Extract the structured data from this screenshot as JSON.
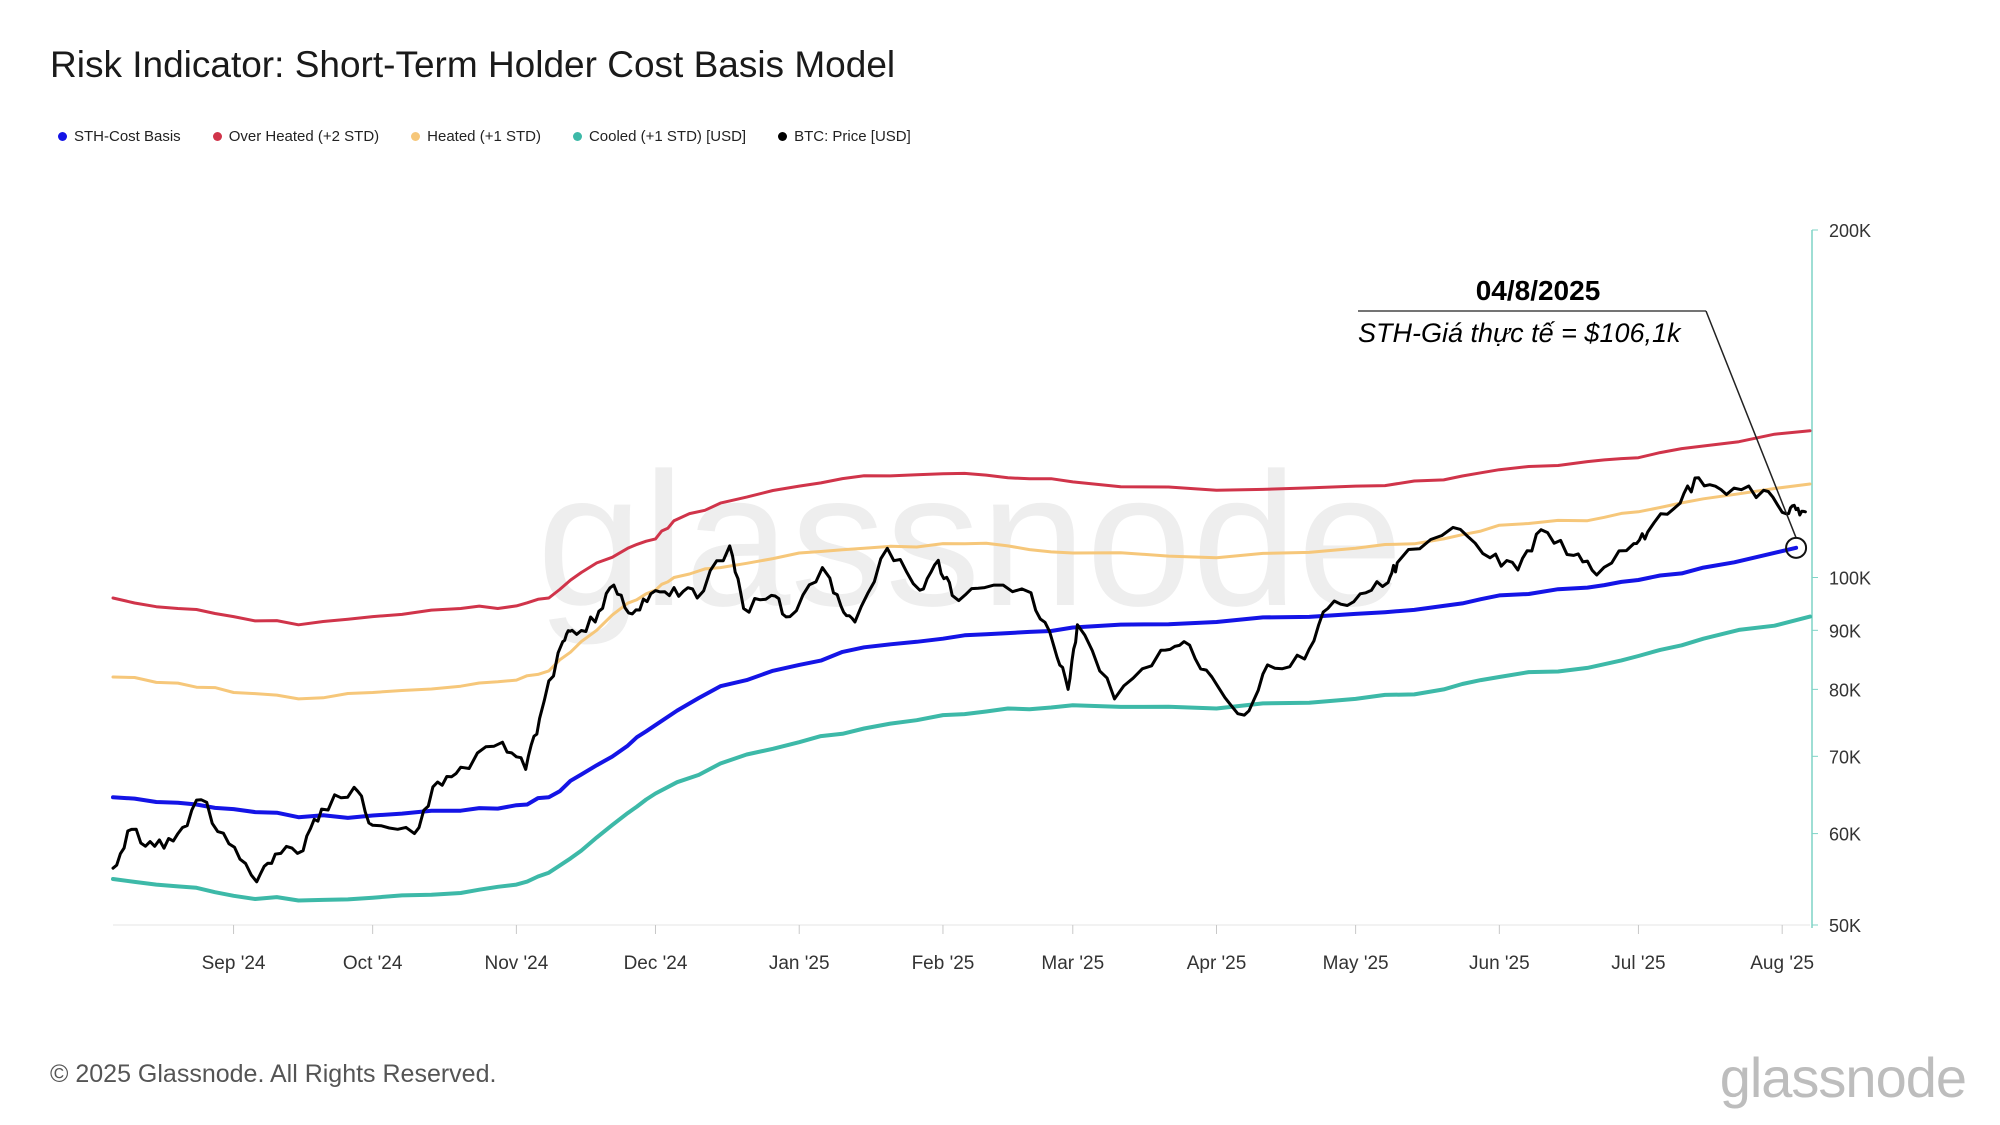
{
  "title": "Risk Indicator: Short-Term Holder Cost Basis Model",
  "legend": [
    {
      "label": "STH-Cost Basis",
      "color": "#1414e6"
    },
    {
      "label": "Over Heated (+2 STD)",
      "color": "#d0344a"
    },
    {
      "label": "Heated (+1 STD)",
      "color": "#f6c77a"
    },
    {
      "label": "Cooled (+1 STD) [USD]",
      "color": "#3db9a8"
    },
    {
      "label": "BTC: Price [USD]",
      "color": "#000000"
    }
  ],
  "annotation": {
    "date": "04/8/2025",
    "text": "STH-Giá thực tế = $106,1k"
  },
  "watermark": "glassnode",
  "footer": {
    "copyright": "© 2025 Glassnode. All Rights Reserved.",
    "logo": "glassnode"
  },
  "chart_data": {
    "type": "line",
    "y_scale": "log",
    "ylim": [
      50000,
      200000
    ],
    "xlim": [
      "2024-08-06",
      "2025-08-07"
    ],
    "x_ticks": [
      {
        "date": "2024-09-01",
        "label": "Sep '24"
      },
      {
        "date": "2024-10-01",
        "label": "Oct '24"
      },
      {
        "date": "2024-11-01",
        "label": "Nov '24"
      },
      {
        "date": "2024-12-01",
        "label": "Dec '24"
      },
      {
        "date": "2025-01-01",
        "label": "Jan '25"
      },
      {
        "date": "2025-02-01",
        "label": "Feb '25"
      },
      {
        "date": "2025-03-01",
        "label": "Mar '25"
      },
      {
        "date": "2025-04-01",
        "label": "Apr '25"
      },
      {
        "date": "2025-05-01",
        "label": "May '25"
      },
      {
        "date": "2025-06-01",
        "label": "Jun '25"
      },
      {
        "date": "2025-07-01",
        "label": "Jul '25"
      },
      {
        "date": "2025-08-01",
        "label": "Aug '25"
      }
    ],
    "y_ticks": [
      {
        "value": 50000,
        "label": "50K"
      },
      {
        "value": 60000,
        "label": "60K"
      },
      {
        "value": 70000,
        "label": "70K"
      },
      {
        "value": 80000,
        "label": "80K"
      },
      {
        "value": 90000,
        "label": "90K"
      },
      {
        "value": 100000,
        "label": "100K"
      },
      {
        "value": 200000,
        "label": "200K"
      }
    ],
    "series": [
      {
        "name": "Over Heated (+2 STD)",
        "color": "#d0344a",
        "width": 3,
        "points": [
          [
            "2024-08-06",
            96000
          ],
          [
            "2024-08-20",
            94000
          ],
          [
            "2024-09-01",
            92500
          ],
          [
            "2024-09-15",
            91000
          ],
          [
            "2024-10-01",
            92500
          ],
          [
            "2024-10-20",
            94000
          ],
          [
            "2024-11-01",
            94500
          ],
          [
            "2024-11-08",
            96000
          ],
          [
            "2024-11-15",
            101000
          ],
          [
            "2024-11-25",
            106000
          ],
          [
            "2024-12-01",
            108000
          ],
          [
            "2024-12-05",
            112000
          ],
          [
            "2024-12-15",
            116000
          ],
          [
            "2025-01-01",
            120000
          ],
          [
            "2025-01-15",
            122500
          ],
          [
            "2025-02-01",
            123000
          ],
          [
            "2025-02-15",
            122000
          ],
          [
            "2025-03-01",
            121000
          ],
          [
            "2025-04-01",
            119000
          ],
          [
            "2025-05-01",
            120000
          ],
          [
            "2025-05-20",
            121500
          ],
          [
            "2025-06-01",
            124000
          ],
          [
            "2025-06-20",
            126000
          ],
          [
            "2025-07-01",
            127000
          ],
          [
            "2025-07-15",
            130000
          ],
          [
            "2025-08-07",
            134000
          ]
        ]
      },
      {
        "name": "Heated (+1 STD)",
        "color": "#f6c77a",
        "width": 3,
        "points": [
          [
            "2024-08-06",
            82000
          ],
          [
            "2024-08-20",
            81000
          ],
          [
            "2024-09-01",
            79500
          ],
          [
            "2024-09-15",
            78500
          ],
          [
            "2024-10-01",
            79500
          ],
          [
            "2024-10-20",
            80500
          ],
          [
            "2024-11-01",
            81500
          ],
          [
            "2024-11-08",
            83000
          ],
          [
            "2024-11-15",
            88000
          ],
          [
            "2024-11-25",
            95000
          ],
          [
            "2024-12-01",
            97500
          ],
          [
            "2024-12-05",
            100000
          ],
          [
            "2024-12-15",
            102000
          ],
          [
            "2025-01-01",
            105000
          ],
          [
            "2025-01-15",
            106000
          ],
          [
            "2025-02-01",
            107000
          ],
          [
            "2025-02-15",
            106500
          ],
          [
            "2025-03-01",
            105000
          ],
          [
            "2025-04-01",
            104000
          ],
          [
            "2025-05-01",
            106000
          ],
          [
            "2025-05-20",
            108000
          ],
          [
            "2025-06-01",
            111000
          ],
          [
            "2025-06-20",
            112000
          ],
          [
            "2025-07-01",
            114000
          ],
          [
            "2025-07-15",
            117000
          ],
          [
            "2025-08-07",
            120500
          ]
        ]
      },
      {
        "name": "STH-Cost Basis",
        "color": "#1414e6",
        "width": 4,
        "points": [
          [
            "2024-08-06",
            64500
          ],
          [
            "2024-08-20",
            63800
          ],
          [
            "2024-09-01",
            63000
          ],
          [
            "2024-09-15",
            62000
          ],
          [
            "2024-10-01",
            62200
          ],
          [
            "2024-10-20",
            62800
          ],
          [
            "2024-11-01",
            63500
          ],
          [
            "2024-11-08",
            64500
          ],
          [
            "2024-11-15",
            67500
          ],
          [
            "2024-11-25",
            71500
          ],
          [
            "2024-12-01",
            74500
          ],
          [
            "2024-12-15",
            80500
          ],
          [
            "2025-01-01",
            84000
          ],
          [
            "2025-01-15",
            87000
          ],
          [
            "2025-02-01",
            88500
          ],
          [
            "2025-02-15",
            89500
          ],
          [
            "2025-03-01",
            90500
          ],
          [
            "2025-04-01",
            91500
          ],
          [
            "2025-05-01",
            93000
          ],
          [
            "2025-05-20",
            94500
          ],
          [
            "2025-06-01",
            96500
          ],
          [
            "2025-06-20",
            98000
          ],
          [
            "2025-07-01",
            99500
          ],
          [
            "2025-07-15",
            102000
          ],
          [
            "2025-08-04",
            106100
          ]
        ]
      },
      {
        "name": "Cooled (+1 STD) [USD]",
        "color": "#3db9a8",
        "width": 4,
        "points": [
          [
            "2024-08-06",
            54800
          ],
          [
            "2024-08-20",
            54000
          ],
          [
            "2024-09-01",
            53000
          ],
          [
            "2024-09-15",
            52500
          ],
          [
            "2024-10-01",
            52800
          ],
          [
            "2024-10-20",
            53300
          ],
          [
            "2024-11-01",
            54200
          ],
          [
            "2024-11-08",
            55500
          ],
          [
            "2024-11-15",
            58000
          ],
          [
            "2024-11-25",
            62500
          ],
          [
            "2024-12-01",
            65000
          ],
          [
            "2024-12-15",
            69000
          ],
          [
            "2025-01-01",
            72000
          ],
          [
            "2025-01-15",
            74000
          ],
          [
            "2025-02-01",
            76000
          ],
          [
            "2025-02-15",
            77000
          ],
          [
            "2025-03-01",
            77500
          ],
          [
            "2025-04-01",
            77000
          ],
          [
            "2025-05-01",
            78500
          ],
          [
            "2025-05-20",
            80000
          ],
          [
            "2025-06-01",
            82000
          ],
          [
            "2025-06-20",
            83500
          ],
          [
            "2025-07-01",
            85500
          ],
          [
            "2025-07-15",
            88500
          ],
          [
            "2025-08-07",
            92500
          ]
        ]
      },
      {
        "name": "BTC: Price [USD]",
        "color": "#000000",
        "width": 3,
        "points": [
          [
            "2024-08-06",
            56000
          ],
          [
            "2024-08-10",
            60500
          ],
          [
            "2024-08-15",
            58500
          ],
          [
            "2024-08-20",
            60000
          ],
          [
            "2024-08-25",
            64200
          ],
          [
            "2024-08-31",
            58800
          ],
          [
            "2024-09-06",
            54500
          ],
          [
            "2024-09-10",
            57600
          ],
          [
            "2024-09-16",
            58000
          ],
          [
            "2024-09-20",
            63000
          ],
          [
            "2024-09-27",
            65800
          ],
          [
            "2024-10-01",
            61000
          ],
          [
            "2024-10-10",
            60000
          ],
          [
            "2024-10-15",
            66500
          ],
          [
            "2024-10-20",
            68500
          ],
          [
            "2024-10-29",
            72000
          ],
          [
            "2024-11-03",
            68200
          ],
          [
            "2024-11-06",
            75500
          ],
          [
            "2024-11-11",
            88000
          ],
          [
            "2024-11-13",
            90000
          ],
          [
            "2024-11-18",
            91500
          ],
          [
            "2024-11-22",
            98500
          ],
          [
            "2024-11-26",
            93000
          ],
          [
            "2024-11-30",
            96800
          ],
          [
            "2024-12-05",
            98000
          ],
          [
            "2024-12-10",
            96000
          ],
          [
            "2024-12-17",
            106500
          ],
          [
            "2024-12-20",
            94000
          ],
          [
            "2024-12-26",
            96500
          ],
          [
            "2024-12-30",
            92500
          ],
          [
            "2025-01-06",
            102000
          ],
          [
            "2025-01-10",
            94500
          ],
          [
            "2025-01-13",
            91500
          ],
          [
            "2025-01-20",
            106000
          ],
          [
            "2025-01-27",
            97500
          ],
          [
            "2025-01-31",
            103500
          ],
          [
            "2025-02-03",
            96500
          ],
          [
            "2025-02-10",
            98000
          ],
          [
            "2025-02-20",
            97000
          ],
          [
            "2025-02-25",
            87000
          ],
          [
            "2025-02-28",
            80000
          ],
          [
            "2025-03-02",
            91000
          ],
          [
            "2025-03-10",
            78500
          ],
          [
            "2025-03-20",
            86500
          ],
          [
            "2025-03-25",
            88000
          ],
          [
            "2025-03-31",
            82000
          ],
          [
            "2025-04-07",
            76000
          ],
          [
            "2025-04-12",
            84000
          ],
          [
            "2025-04-20",
            85000
          ],
          [
            "2025-04-25",
            94000
          ],
          [
            "2025-05-02",
            96800
          ],
          [
            "2025-05-08",
            99000
          ],
          [
            "2025-05-10",
            103000
          ],
          [
            "2025-05-22",
            110500
          ],
          [
            "2025-05-30",
            104000
          ],
          [
            "2025-06-05",
            101500
          ],
          [
            "2025-06-10",
            110000
          ],
          [
            "2025-06-17",
            104500
          ],
          [
            "2025-06-22",
            100500
          ],
          [
            "2025-06-30",
            107000
          ],
          [
            "2025-07-03",
            109500
          ],
          [
            "2025-07-10",
            116000
          ],
          [
            "2025-07-14",
            122000
          ],
          [
            "2025-07-20",
            118000
          ],
          [
            "2025-07-28",
            119000
          ],
          [
            "2025-08-02",
            113500
          ],
          [
            "2025-08-04",
            114500
          ],
          [
            "2025-08-06",
            114000
          ]
        ]
      }
    ]
  }
}
